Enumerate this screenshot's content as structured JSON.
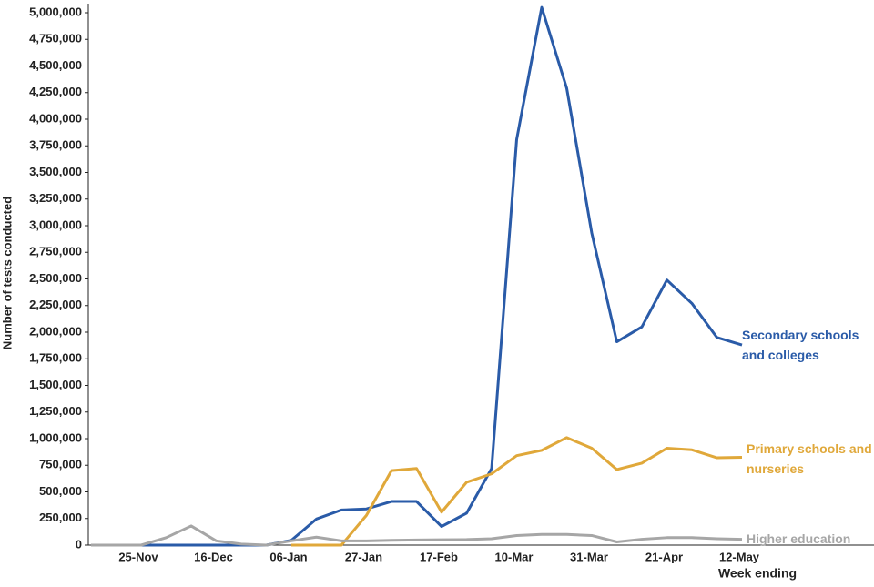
{
  "chart_data": {
    "type": "line",
    "y_label": "Number of tests conducted",
    "x_label": "Week ending",
    "categories": [
      null,
      null,
      "25-Nov",
      null,
      null,
      "16-Dec",
      null,
      null,
      "06-Jan",
      null,
      null,
      "27-Jan",
      null,
      null,
      "17-Feb",
      null,
      null,
      "10-Mar",
      null,
      null,
      "31-Mar",
      null,
      null,
      "21-Apr",
      null,
      null,
      "12-May"
    ],
    "series": [
      {
        "name": "Secondary schools and colleges",
        "color": "#2a5ba8",
        "values": [
          0,
          0,
          0,
          0,
          0,
          0,
          0,
          0,
          45000,
          245000,
          330000,
          340000,
          410000,
          410000,
          175000,
          300000,
          720000,
          3810000,
          5050000,
          4290000,
          2930000,
          1910000,
          2050000,
          2490000,
          2270000,
          1950000,
          1880000
        ]
      },
      {
        "name": "Primary schools and nurseries",
        "color": "#e0a83a",
        "values": [
          null,
          null,
          null,
          null,
          null,
          null,
          null,
          null,
          0,
          0,
          0,
          280000,
          700000,
          720000,
          310000,
          590000,
          670000,
          840000,
          890000,
          1010000,
          910000,
          710000,
          770000,
          910000,
          895000,
          820000,
          825000
        ]
      },
      {
        "name": "Higher education",
        "color": "#a6a6a6",
        "values": [
          0,
          0,
          0,
          70000,
          180000,
          40000,
          10000,
          0,
          40000,
          75000,
          40000,
          40000,
          45000,
          48000,
          50000,
          52000,
          60000,
          90000,
          100000,
          100000,
          90000,
          30000,
          55000,
          70000,
          70000,
          60000,
          55000
        ]
      }
    ],
    "ylim": [
      0,
      5000000
    ],
    "yticks": [
      {
        "value": 0,
        "label": "0"
      },
      {
        "value": 250000,
        "label": "250,000"
      },
      {
        "value": 500000,
        "label": "500,000"
      },
      {
        "value": 750000,
        "label": "750,000"
      },
      {
        "value": 1000000,
        "label": "1,000,000"
      },
      {
        "value": 1250000,
        "label": "1,250,000"
      },
      {
        "value": 1500000,
        "label": "1,500,000"
      },
      {
        "value": 1750000,
        "label": "1,750,000"
      },
      {
        "value": 2000000,
        "label": "2,000,000"
      },
      {
        "value": 2250000,
        "label": "2,250,000"
      },
      {
        "value": 2500000,
        "label": "2,500,000"
      },
      {
        "value": 2750000,
        "label": "2,750,000"
      },
      {
        "value": 3000000,
        "label": "3,000,000"
      },
      {
        "value": 3250000,
        "label": "3,250,000"
      },
      {
        "value": 3500000,
        "label": "3,500,000"
      },
      {
        "value": 3750000,
        "label": "3,750,000"
      },
      {
        "value": 4000000,
        "label": "4,000,000"
      },
      {
        "value": 4250000,
        "label": "4,250,000"
      },
      {
        "value": 4500000,
        "label": "4,500,000"
      },
      {
        "value": 4750000,
        "label": "4,750,000"
      },
      {
        "value": 5000000,
        "label": "5,000,000"
      }
    ]
  }
}
